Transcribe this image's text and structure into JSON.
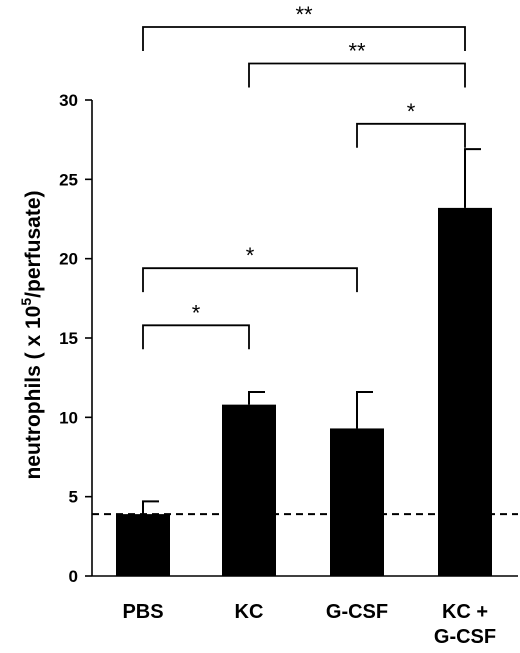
{
  "chart_data": {
    "type": "bar",
    "title": "",
    "xlabel": "",
    "ylabel": "neutrophils ( x 10",
    "ylabel_superscript": "5",
    "ylabel_suffix": "/perfusate)",
    "ylim": [
      0,
      30
    ],
    "yticks": [
      "0",
      "5",
      "10",
      "15",
      "20",
      "25",
      "30"
    ],
    "categories": [
      "PBS",
      "KC",
      "G-CSF",
      "KC +\nG-CSF"
    ],
    "values": [
      3.9,
      10.8,
      9.3,
      23.2
    ],
    "error_upper": [
      0.8,
      0.8,
      2.3,
      3.7
    ],
    "baseline": 3.9,
    "bar_color": "#000000",
    "grid": false,
    "legend": "none",
    "significance": [
      {
        "from": 0,
        "to": 3,
        "label": "**",
        "y": 34.6
      },
      {
        "from": 1,
        "to": 3,
        "label": "**",
        "y": 32.3
      },
      {
        "from": 2,
        "to": 3,
        "label": "*",
        "y": 28.5
      },
      {
        "from": 0,
        "to": 2,
        "label": "*",
        "y": 19.4
      },
      {
        "from": 0,
        "to": 1,
        "label": "*",
        "y": 15.8
      }
    ]
  }
}
